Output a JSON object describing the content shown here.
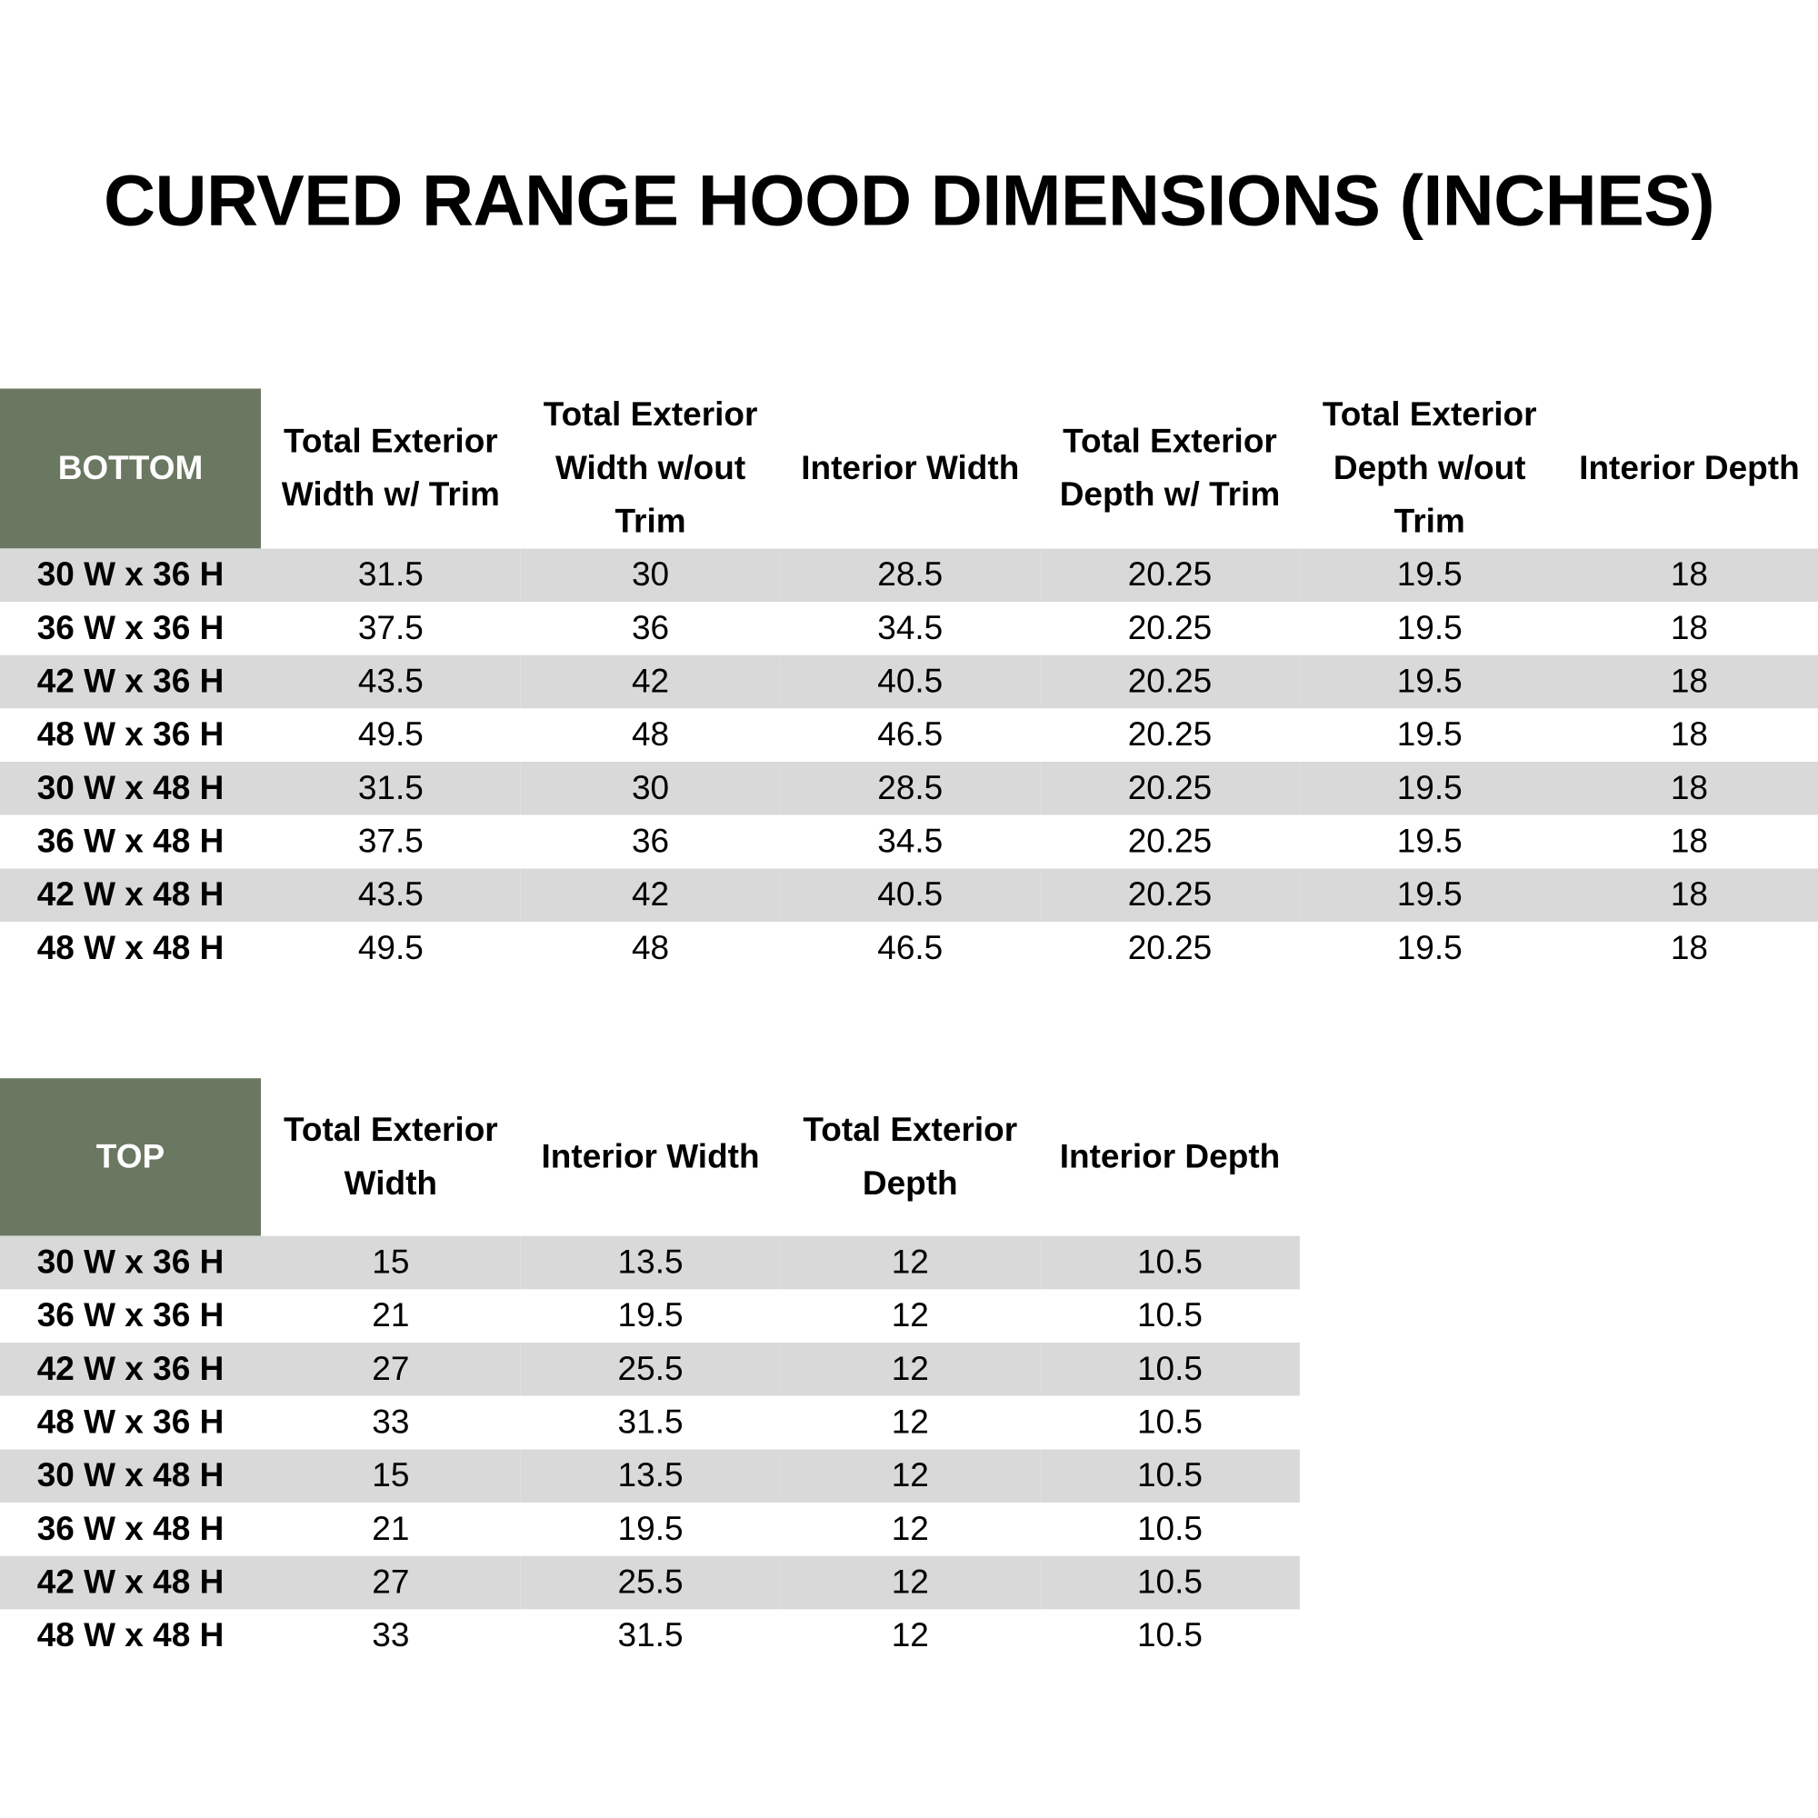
{
  "title": "CURVED RANGE HOOD DIMENSIONS (INCHES)",
  "bottom_table": {
    "corner": "BOTTOM",
    "headers": [
      "Total Exterior Width w/ Trim",
      "Total Exterior Width w/out Trim",
      "Interior Width",
      "Total Exterior Depth w/ Trim",
      "Total Exterior Depth w/out Trim",
      "Interior Depth"
    ],
    "rows": [
      [
        "30 W x 36 H",
        31.5,
        30,
        28.5,
        20.25,
        19.5,
        18
      ],
      [
        "36 W x 36 H",
        37.5,
        36,
        34.5,
        20.25,
        19.5,
        18
      ],
      [
        "42 W x 36 H",
        43.5,
        42,
        40.5,
        20.25,
        19.5,
        18
      ],
      [
        "48 W x 36 H",
        49.5,
        48,
        46.5,
        20.25,
        19.5,
        18
      ],
      [
        "30 W x 48 H",
        31.5,
        30,
        28.5,
        20.25,
        19.5,
        18
      ],
      [
        "36 W x 48 H",
        37.5,
        36,
        34.5,
        20.25,
        19.5,
        18
      ],
      [
        "42 W x 48 H",
        43.5,
        42,
        40.5,
        20.25,
        19.5,
        18
      ],
      [
        "48 W x 48 H",
        49.5,
        48,
        46.5,
        20.25,
        19.5,
        18
      ]
    ]
  },
  "top_table": {
    "corner": "TOP",
    "headers": [
      "Total Exterior Width",
      "Interior Width",
      "Total Exterior Depth",
      "Interior Depth"
    ],
    "rows": [
      [
        "30 W x 36 H",
        15,
        13.5,
        12,
        10.5
      ],
      [
        "36 W x 36 H",
        21,
        19.5,
        12,
        10.5
      ],
      [
        "42 W x 36 H",
        27,
        25.5,
        12,
        10.5
      ],
      [
        "48 W x 36 H",
        33,
        31.5,
        12,
        10.5
      ],
      [
        "30 W x 48 H",
        15,
        13.5,
        12,
        10.5
      ],
      [
        "36 W x 48 H",
        21,
        19.5,
        12,
        10.5
      ],
      [
        "42 W x 48 H",
        27,
        25.5,
        12,
        10.5
      ],
      [
        "48 W x 48 H",
        33,
        31.5,
        12,
        10.5
      ]
    ]
  }
}
